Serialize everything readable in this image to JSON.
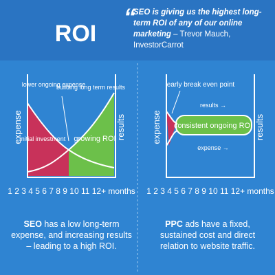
{
  "header": {
    "title": "ROI",
    "quote_mark": "“",
    "quote": "SEO is giving us the highest long-term ROI of any of our online marketing",
    "attribution": "– Trevor Mauch, InvestorCarrot"
  },
  "panels": [
    {
      "y_left": "expense",
      "y_right": "results",
      "x_axis": "1 2 3 4 5 6 7 8 9 10 11 12+ months",
      "labels": [
        "lower ongoing expense",
        "building long term results",
        "initial investment",
        "growing ROI"
      ],
      "lead": "SEO",
      "text": "has a low long-term expense, and increasing results – leading to a high ROI."
    },
    {
      "y_left": "expense",
      "y_right": "results",
      "x_axis": "1 2 3 4 5 6 7 8 9 10 11 12+ months",
      "labels": [
        "early break even point",
        "results →",
        "consistent ongoing ROI",
        "expense →"
      ],
      "lead": "PPC",
      "text": "ads have a fixed, sustained cost and direct relation to website traffic."
    }
  ]
}
